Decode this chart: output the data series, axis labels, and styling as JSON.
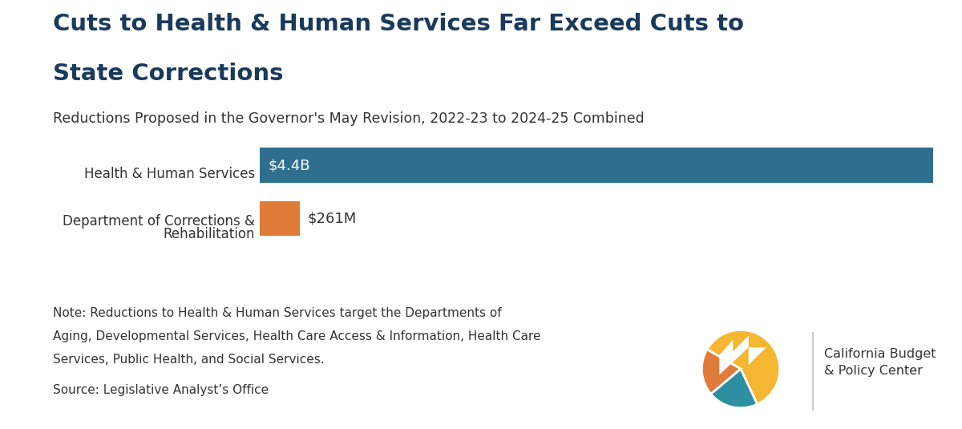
{
  "title_line1": "Cuts to Health & Human Services Far Exceed Cuts to",
  "title_line2": "State Corrections",
  "subtitle": "Reductions Proposed in the Governor's May Revision, 2022-23 to 2024-25 Combined",
  "cat1": "Health & Human Services",
  "cat2_line1": "Department of Corrections &",
  "cat2_line2": "Rehabilitation",
  "values": [
    4400,
    261
  ],
  "max_value": 4400,
  "labels": [
    "$4.4B",
    "$261M"
  ],
  "bar_colors": [
    "#2e6f8e",
    "#e07b39"
  ],
  "note_line1": "Note: Reductions to Health & Human Services target the Departments of",
  "note_line2": "Aging, Developmental Services, Health Care Access & Information, Health Care",
  "note_line3": "Services, Public Health, and Social Services.",
  "source": "Source: Legislative Analyst’s Office",
  "background_color": "#ffffff",
  "title_color": "#1a3a5c",
  "text_color": "#333333",
  "note_color": "#333333",
  "org_name": "California Budget\n& Policy Center",
  "logo_yellow": "#f5b731",
  "logo_orange": "#e07b39",
  "logo_teal": "#2e8fa0",
  "logo_white": "#ffffff",
  "separator_color": "#cccccc"
}
